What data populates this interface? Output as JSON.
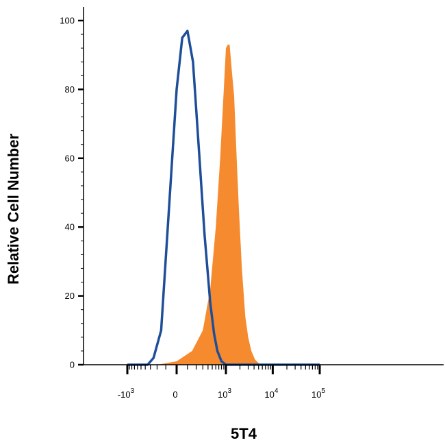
{
  "chart_data": {
    "type": "area",
    "xlabel": "5T4",
    "ylabel": "Relative Cell Number",
    "xscale": "biexponential",
    "ylim": [
      0,
      100
    ],
    "y_ticks": [
      "0",
      "20",
      "40",
      "60",
      "80",
      "100"
    ],
    "x_ticks": [
      {
        "base": "-10",
        "exp": "3"
      },
      {
        "base": "0",
        "exp": ""
      },
      {
        "base": "10",
        "exp": "3"
      },
      {
        "base": "10",
        "exp": "4"
      },
      {
        "base": "10",
        "exp": "5"
      }
    ],
    "grid": false,
    "series": [
      {
        "style": "filled",
        "color": "#f68a2e",
        "x": [
          -200,
          0,
          150,
          300,
          450,
          600,
          750,
          900,
          1000,
          1100,
          1200,
          1350,
          1500,
          1700,
          1900,
          2200,
          2600,
          3000,
          3500,
          4200,
          5000,
          6000
        ],
        "y": [
          0,
          1,
          4,
          10,
          22,
          40,
          60,
          80,
          92,
          93,
          93,
          85,
          78,
          60,
          45,
          28,
          14,
          8,
          4,
          1.5,
          0.5,
          0
        ]
      },
      {
        "style": "outline",
        "color": "#1f4e99",
        "x": [
          -1000,
          -350,
          -250,
          -150,
          -70,
          0,
          50,
          100,
          160,
          230,
          330,
          450,
          550,
          650,
          800,
          1000,
          100000
        ],
        "y": [
          0,
          0,
          2,
          10,
          45,
          80,
          95,
          97,
          88,
          65,
          38,
          18,
          9,
          4,
          1,
          0,
          0
        ]
      }
    ]
  }
}
